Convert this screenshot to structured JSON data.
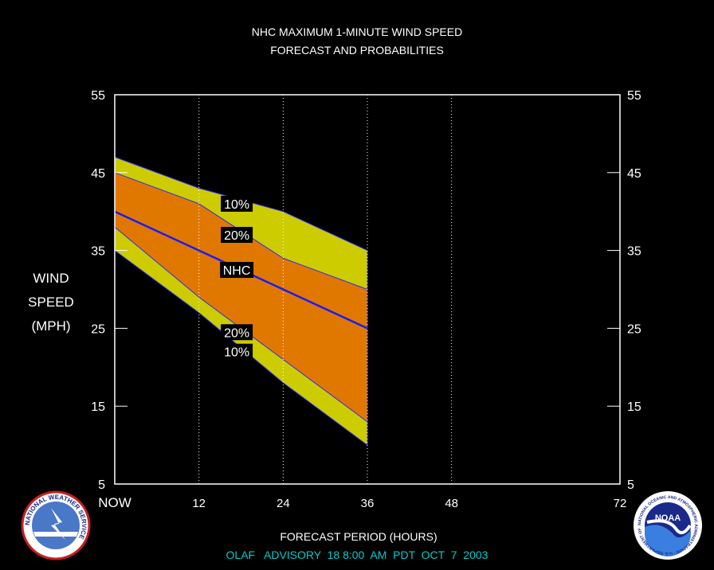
{
  "chart_data": {
    "type": "area",
    "title_line1": "NHC MAXIMUM 1-MINUTE WIND SPEED",
    "title_line2": "FORECAST AND PROBABILITIES",
    "ylabel_lines": [
      "WIND",
      "SPEED",
      "(MPH)"
    ],
    "xlabel": "FORECAST PERIOD (HOURS)",
    "advisory": "OLAF   ADVISORY  18 8:00  AM  PDT  OCT  7  2003",
    "xlim": [
      0,
      72
    ],
    "ylim": [
      5,
      55
    ],
    "x_ticks": [
      {
        "value": 0,
        "label": "NOW"
      },
      {
        "value": 12,
        "label": "12"
      },
      {
        "value": 24,
        "label": "24"
      },
      {
        "value": 36,
        "label": "36"
      },
      {
        "value": 48,
        "label": "48"
      },
      {
        "value": 72,
        "label": "72"
      }
    ],
    "y_ticks": [
      5,
      15,
      25,
      35,
      45,
      55
    ],
    "grid_x": [
      12,
      24,
      36,
      48
    ],
    "x": [
      0,
      12,
      24,
      36
    ],
    "bands": [
      {
        "name": "10%",
        "upper": [
          47,
          43,
          40,
          35
        ],
        "lower": [
          35,
          27,
          18,
          10
        ],
        "color": "#cccc00"
      },
      {
        "name": "20%",
        "upper": [
          45,
          41,
          34,
          30
        ],
        "lower": [
          38,
          29,
          21,
          13
        ],
        "color": "#e07800"
      }
    ],
    "series": [
      {
        "name": "NHC",
        "values": [
          40,
          35,
          30,
          25
        ],
        "color": "#1a1aff"
      }
    ],
    "annotations": [
      {
        "text": "10%",
        "x": 15,
        "y": 41
      },
      {
        "text": "20%",
        "x": 15,
        "y": 37
      },
      {
        "text": "NHC",
        "x": 15,
        "y": 32.5
      },
      {
        "text": "20%",
        "x": 15,
        "y": 24.5
      },
      {
        "text": "10%",
        "x": 15,
        "y": 22
      }
    ]
  },
  "logos": {
    "nws": {
      "ring_text": "NATIONAL WEATHER SERVICE",
      "colors": {
        "ring": "#ffffff",
        "sky": "#4a78c8",
        "border": "#c81e1e"
      }
    },
    "noaa": {
      "center_text": "NOAA",
      "ring_text": "NATIONAL OCEANIC AND ATMOSPHERIC ADMINISTRATION · U.S. DEPARTMENT OF COMMERCE",
      "colors": {
        "ring": "#1a2a8a",
        "sky": "#3a7ee0",
        "white": "#ffffff"
      }
    }
  }
}
